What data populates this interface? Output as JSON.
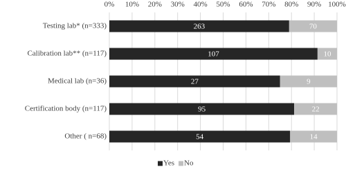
{
  "chart_data": {
    "type": "bar",
    "orientation": "horizontal",
    "stacking": "percent",
    "categories": [
      "Testing lab* (n=333)",
      "Calibration lab** (n=117)",
      "Medical lab (n=36)",
      "Certification body (n=117)",
      "Other ( n=68)"
    ],
    "series": [
      {
        "name": "Yes",
        "color": "#262626",
        "values": [
          263,
          107,
          27,
          95,
          54
        ]
      },
      {
        "name": "No",
        "color": "#bfbfbf",
        "values": [
          70,
          10,
          9,
          22,
          14
        ]
      }
    ],
    "xlim": [
      0,
      100
    ],
    "xticks": [
      {
        "value": 0,
        "label": "0%"
      },
      {
        "value": 10,
        "label": "10%"
      },
      {
        "value": 20,
        "label": "20%"
      },
      {
        "value": 30,
        "label": "30%"
      },
      {
        "value": 40,
        "label": "40%"
      },
      {
        "value": 50,
        "label": "50%"
      },
      {
        "value": 60,
        "label": "60%"
      },
      {
        "value": 70,
        "label": "70%"
      },
      {
        "value": 80,
        "label": "80%"
      },
      {
        "value": 90,
        "label": "90%"
      },
      {
        "value": 100,
        "label": "100%"
      }
    ],
    "grid": true,
    "legend": "bottom"
  }
}
